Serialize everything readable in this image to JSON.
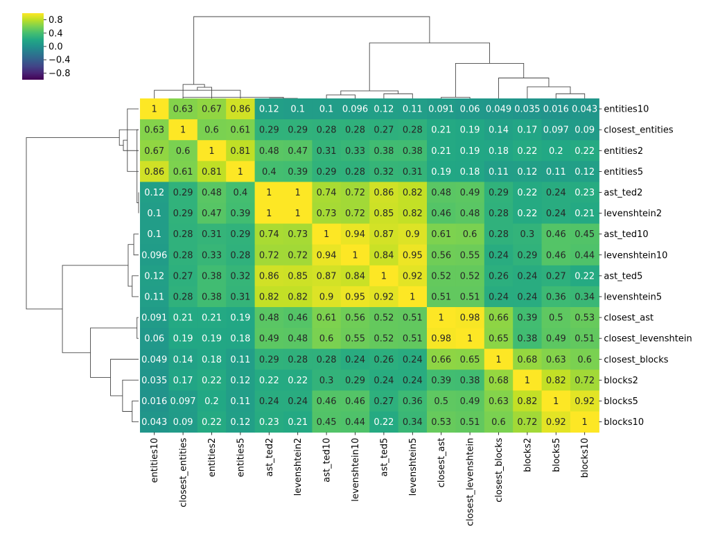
{
  "chart_data": {
    "type": "heatmap",
    "variant": "clustermap",
    "colormap": "viridis",
    "clim": [
      -1,
      1
    ],
    "colorbar_ticks": [
      "0.8",
      "0.4",
      "0.0",
      "−0.4",
      "−0.8"
    ],
    "colorbar_tick_values": [
      0.8,
      0.4,
      0.0,
      -0.4,
      -0.8
    ],
    "row_labels": [
      "entities10",
      "closest_entities",
      "entities2",
      "entities5",
      "ast_ted2",
      "levenshtein2",
      "ast_ted10",
      "levenshtein10",
      "ast_ted5",
      "levenshtein5",
      "closest_ast",
      "closest_levenshtein",
      "closest_blocks",
      "blocks2",
      "blocks5",
      "blocks10"
    ],
    "col_labels": [
      "entities10",
      "closest_entities",
      "entities2",
      "entities5",
      "ast_ted2",
      "levenshtein2",
      "ast_ted10",
      "levenshtein10",
      "ast_ted5",
      "levenshtein5",
      "closest_ast",
      "closest_levenshtein",
      "closest_blocks",
      "blocks2",
      "blocks5",
      "blocks10"
    ],
    "annotations": [
      [
        "1",
        "0.63",
        "0.67",
        "0.86",
        "0.12",
        "0.1",
        "0.1",
        "0.096",
        "0.12",
        "0.11",
        "0.091",
        "0.06",
        "0.049",
        "0.035",
        "0.016",
        "0.043"
      ],
      [
        "0.63",
        "1",
        "0.6",
        "0.61",
        "0.29",
        "0.29",
        "0.28",
        "0.28",
        "0.27",
        "0.28",
        "0.21",
        "0.19",
        "0.14",
        "0.17",
        "0.097",
        "0.09"
      ],
      [
        "0.67",
        "0.6",
        "1",
        "0.81",
        "0.48",
        "0.47",
        "0.31",
        "0.33",
        "0.38",
        "0.38",
        "0.21",
        "0.19",
        "0.18",
        "0.22",
        "0.2",
        "0.22"
      ],
      [
        "0.86",
        "0.61",
        "0.81",
        "1",
        "0.4",
        "0.39",
        "0.29",
        "0.28",
        "0.32",
        "0.31",
        "0.19",
        "0.18",
        "0.11",
        "0.12",
        "0.11",
        "0.12"
      ],
      [
        "0.12",
        "0.29",
        "0.48",
        "0.4",
        "1",
        "1",
        "0.74",
        "0.72",
        "0.86",
        "0.82",
        "0.48",
        "0.49",
        "0.29",
        "0.22",
        "0.24",
        "0.23"
      ],
      [
        "0.1",
        "0.29",
        "0.47",
        "0.39",
        "1",
        "1",
        "0.73",
        "0.72",
        "0.85",
        "0.82",
        "0.46",
        "0.48",
        "0.28",
        "0.22",
        "0.24",
        "0.21"
      ],
      [
        "0.1",
        "0.28",
        "0.31",
        "0.29",
        "0.74",
        "0.73",
        "1",
        "0.94",
        "0.87",
        "0.9",
        "0.61",
        "0.6",
        "0.28",
        "0.3",
        "0.46",
        "0.45"
      ],
      [
        "0.096",
        "0.28",
        "0.33",
        "0.28",
        "0.72",
        "0.72",
        "0.94",
        "1",
        "0.84",
        "0.95",
        "0.56",
        "0.55",
        "0.24",
        "0.29",
        "0.46",
        "0.44"
      ],
      [
        "0.12",
        "0.27",
        "0.38",
        "0.32",
        "0.86",
        "0.85",
        "0.87",
        "0.84",
        "1",
        "0.92",
        "0.52",
        "0.52",
        "0.26",
        "0.24",
        "0.27",
        "0.22"
      ],
      [
        "0.11",
        "0.28",
        "0.38",
        "0.31",
        "0.82",
        "0.82",
        "0.9",
        "0.95",
        "0.92",
        "1",
        "0.51",
        "0.51",
        "0.24",
        "0.24",
        "0.36",
        "0.34"
      ],
      [
        "0.091",
        "0.21",
        "0.21",
        "0.19",
        "0.48",
        "0.46",
        "0.61",
        "0.56",
        "0.52",
        "0.51",
        "1",
        "0.98",
        "0.66",
        "0.39",
        "0.5",
        "0.53"
      ],
      [
        "0.06",
        "0.19",
        "0.19",
        "0.18",
        "0.49",
        "0.48",
        "0.6",
        "0.55",
        "0.52",
        "0.51",
        "0.98",
        "1",
        "0.65",
        "0.38",
        "0.49",
        "0.51"
      ],
      [
        "0.049",
        "0.14",
        "0.18",
        "0.11",
        "0.29",
        "0.28",
        "0.28",
        "0.24",
        "0.26",
        "0.24",
        "0.66",
        "0.65",
        "1",
        "0.68",
        "0.63",
        "0.6"
      ],
      [
        "0.035",
        "0.17",
        "0.22",
        "0.12",
        "0.22",
        "0.22",
        "0.3",
        "0.29",
        "0.24",
        "0.24",
        "0.39",
        "0.38",
        "0.68",
        "1",
        "0.82",
        "0.72"
      ],
      [
        "0.016",
        "0.097",
        "0.2",
        "0.11",
        "0.24",
        "0.24",
        "0.46",
        "0.46",
        "0.27",
        "0.36",
        "0.5",
        "0.49",
        "0.63",
        "0.82",
        "1",
        "0.92"
      ],
      [
        "0.043",
        "0.09",
        "0.22",
        "0.12",
        "0.23",
        "0.21",
        "0.45",
        "0.44",
        "0.22",
        "0.34",
        "0.53",
        "0.51",
        "0.6",
        "0.72",
        "0.92",
        "1"
      ]
    ],
    "dendrogram_merges": [
      [
        4,
        5,
        0.0
      ],
      [
        16,
        1,
        0.02
      ],
      [
        6,
        7,
        0.06
      ],
      [
        8,
        9,
        0.08
      ],
      [
        18,
        19,
        0.13
      ],
      [
        10,
        11,
        0.02
      ],
      [
        0,
        3,
        0.14
      ],
      [
        22,
        2,
        0.19
      ],
      [
        23,
        1,
        0.24
      ],
      [
        14,
        15,
        0.08
      ],
      [
        13,
        25,
        0.2
      ],
      [
        12,
        26,
        0.35
      ],
      [
        21,
        27,
        0.6
      ],
      [
        20,
        28,
        0.95
      ],
      [
        24,
        29,
        1.4
      ]
    ],
    "dendrogram_merges_note_units": "linkage distance",
    "grid": false,
    "colorbar_position": "top-left"
  }
}
